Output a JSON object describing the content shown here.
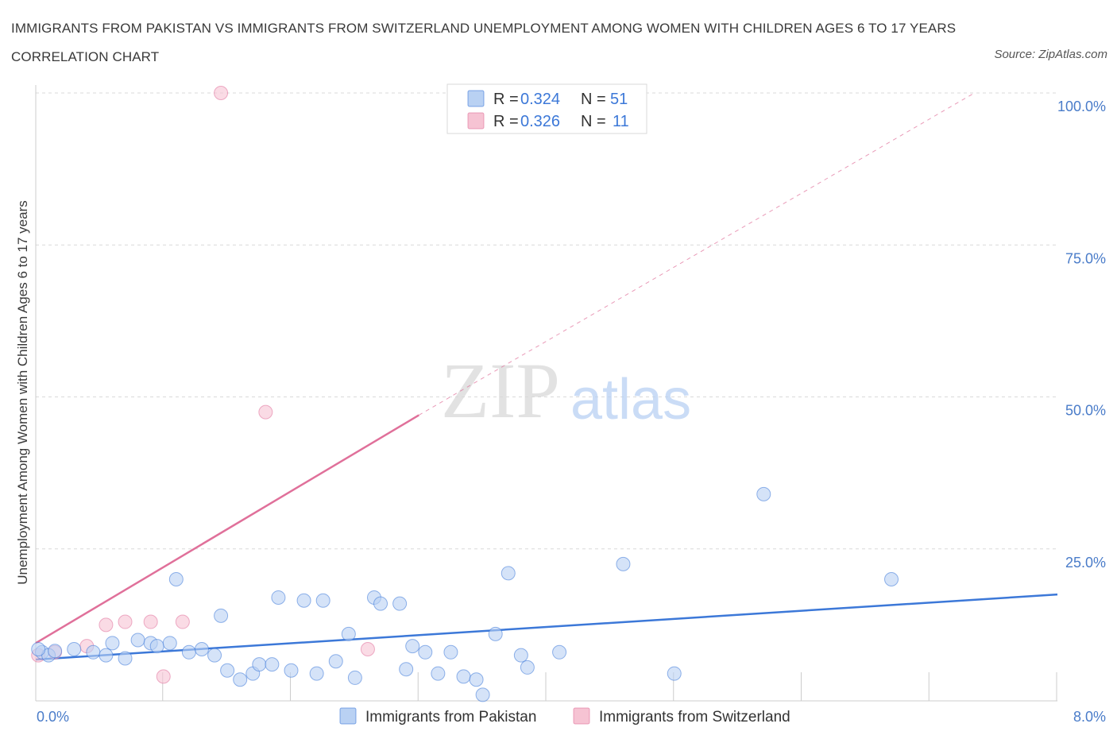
{
  "title": "IMMIGRANTS FROM PAKISTAN VS IMMIGRANTS FROM SWITZERLAND UNEMPLOYMENT AMONG WOMEN WITH CHILDREN AGES 6 TO 17 YEARS CORRELATION CHART",
  "source": "Source: ZipAtlas.com",
  "watermark": {
    "zip": "ZIP",
    "atlas": "atlas"
  },
  "colors": {
    "pakistan": "#3c78d8",
    "pakistan_fill": "#b9d1f3",
    "switzerland": "#e0709a",
    "switzerland_fill": "#f6c3d3",
    "grid": "#d9d9d9",
    "tick_label": "#4a7cc9"
  },
  "legend": {
    "rows": [
      {
        "r_label": "R = ",
        "r_value": "0.324",
        "n_label": "N = ",
        "n_value": "51"
      },
      {
        "r_label": "R = ",
        "r_value": "0.326",
        "n_label": "N = ",
        "n_value": "11"
      }
    ]
  },
  "chart_data": {
    "type": "scatter",
    "title": "IMMIGRANTS FROM PAKISTAN VS IMMIGRANTS FROM SWITZERLAND UNEMPLOYMENT AMONG WOMEN WITH CHILDREN AGES 6 TO 17 YEARS CORRELATION CHART",
    "xlabel": "",
    "ylabel": "Unemployment Among Women with Children Ages 6 to 17 years",
    "xlim": [
      0,
      8
    ],
    "ylim": [
      0,
      100
    ],
    "x_ticks": [
      {
        "value": 0,
        "label": "0.0%"
      },
      {
        "value": 8,
        "label": "8.0%"
      }
    ],
    "y_ticks": [
      {
        "value": 25,
        "label": "25.0%"
      },
      {
        "value": 50,
        "label": "50.0%"
      },
      {
        "value": 75,
        "label": "75.0%"
      },
      {
        "value": 100,
        "label": "100.0%"
      }
    ],
    "grid": true,
    "legend_position": "top-center",
    "series": [
      {
        "name": "Immigrants from Pakistan",
        "color": "#3c78d8",
        "R": 0.324,
        "N": 51,
        "trend": {
          "x0": 0,
          "y0": 6.8,
          "x1": 8,
          "y1": 17.5,
          "style": "solid"
        },
        "points": [
          [
            0.05,
            8.0
          ],
          [
            0.1,
            7.5
          ],
          [
            0.15,
            8.2
          ],
          [
            0.3,
            8.5
          ],
          [
            0.45,
            8.0
          ],
          [
            0.55,
            7.5
          ],
          [
            0.6,
            9.5
          ],
          [
            0.7,
            7.0
          ],
          [
            0.8,
            10.0
          ],
          [
            0.9,
            9.5
          ],
          [
            0.95,
            9.0
          ],
          [
            1.05,
            9.5
          ],
          [
            1.1,
            20.0
          ],
          [
            1.2,
            8.0
          ],
          [
            1.3,
            8.5
          ],
          [
            1.4,
            7.5
          ],
          [
            1.45,
            14.0
          ],
          [
            1.5,
            5.0
          ],
          [
            1.6,
            3.5
          ],
          [
            1.7,
            4.5
          ],
          [
            1.75,
            6.0
          ],
          [
            1.85,
            6.0
          ],
          [
            1.9,
            17.0
          ],
          [
            2.0,
            5.0
          ],
          [
            2.1,
            16.5
          ],
          [
            2.2,
            4.5
          ],
          [
            2.25,
            16.5
          ],
          [
            2.35,
            6.5
          ],
          [
            2.45,
            11.0
          ],
          [
            2.5,
            3.8
          ],
          [
            2.65,
            17.0
          ],
          [
            2.7,
            16.0
          ],
          [
            2.85,
            16.0
          ],
          [
            2.9,
            5.2
          ],
          [
            2.95,
            9.0
          ],
          [
            3.05,
            8.0
          ],
          [
            3.15,
            4.5
          ],
          [
            3.25,
            8.0
          ],
          [
            3.35,
            4.0
          ],
          [
            3.45,
            3.5
          ],
          [
            3.5,
            1.0
          ],
          [
            3.6,
            11.0
          ],
          [
            3.7,
            21.0
          ],
          [
            3.8,
            7.5
          ],
          [
            3.85,
            5.5
          ],
          [
            4.1,
            8.0
          ],
          [
            4.6,
            22.5
          ],
          [
            5.0,
            4.5
          ],
          [
            5.7,
            34.0
          ],
          [
            6.7,
            20.0
          ],
          [
            0.02,
            8.5
          ]
        ]
      },
      {
        "name": "Immigrants from Switzerland",
        "color": "#e0709a",
        "R": 0.326,
        "N": 11,
        "trend": {
          "x0": 0,
          "y0": 9.5,
          "x1": 3.0,
          "y1": 47.0,
          "style": "solid",
          "dash_extension_to": {
            "x": 7.35,
            "y": 100
          }
        },
        "points": [
          [
            0.02,
            7.5
          ],
          [
            0.15,
            8.0
          ],
          [
            0.4,
            9.0
          ],
          [
            0.55,
            12.5
          ],
          [
            0.7,
            13.0
          ],
          [
            0.9,
            13.0
          ],
          [
            1.0,
            4.0
          ],
          [
            1.15,
            13.0
          ],
          [
            1.45,
            100.0
          ],
          [
            1.8,
            47.5
          ],
          [
            2.6,
            8.5
          ]
        ]
      }
    ]
  }
}
